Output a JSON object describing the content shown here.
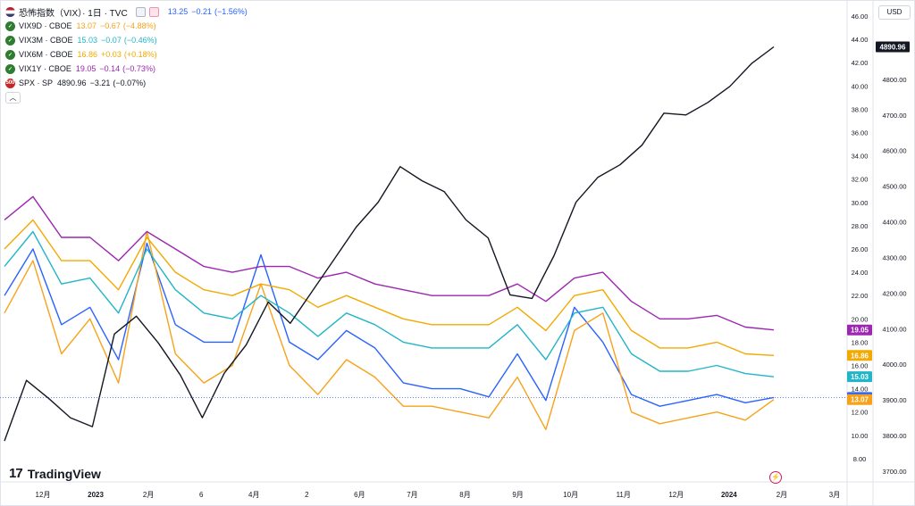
{
  "header": {
    "symbol_name": "恐怖指数（VIX）· 1日 · TVC",
    "last": "13.25",
    "change": "−0.21",
    "change_pct": "(−1.56%)",
    "flag_icon": "us-flag-icon"
  },
  "legend": [
    {
      "icon": "vix9d-logo-icon",
      "name": "VIX9D · CBOE",
      "value": "13.07",
      "change": "−0.67",
      "change_pct": "(−4.88%)",
      "color": "#f7a21b"
    },
    {
      "icon": "vix3m-logo-icon",
      "name": "VIX3M · CBOE",
      "value": "15.03",
      "change": "−0.07",
      "change_pct": "(−0.46%)",
      "color": "#22b5c8"
    },
    {
      "icon": "vix6m-logo-icon",
      "name": "VIX6M · CBOE",
      "value": "16.86",
      "change": "+0.03",
      "change_pct": "(+0.18%)",
      "color": "#f2a900"
    },
    {
      "icon": "vix1y-logo-icon",
      "name": "VIX1Y · CBOE",
      "value": "19.05",
      "change": "−0.14",
      "change_pct": "(−0.73%)",
      "color": "#9c27b0"
    },
    {
      "icon": "spx-logo-icon",
      "logo_text": "500",
      "name": "SPX · SP",
      "value": "4890.96",
      "change": "−3.21",
      "change_pct": "(−0.07%)",
      "color": "#131722"
    }
  ],
  "currency": "USD",
  "brand": "TradingView",
  "chart_data": {
    "type": "line",
    "x_tick_labels": [
      "12月",
      "2023",
      "2月",
      "6",
      "4月",
      "2",
      "6月",
      "7月",
      "8月",
      "9月",
      "10月",
      "11月",
      "12月",
      "2024",
      "2月",
      "3月"
    ],
    "y_axis_vix": {
      "range": [
        6,
        47
      ],
      "ticks": [
        "46.00",
        "44.00",
        "42.00",
        "40.00",
        "38.00",
        "36.00",
        "34.00",
        "32.00",
        "30.00",
        "28.00",
        "26.00",
        "24.00",
        "22.00",
        "20.00",
        "18.00",
        "16.00",
        "14.00",
        "12.00",
        "10.00",
        "8.00"
      ]
    },
    "y_axis_spx": {
      "range": [
        3670,
        5010
      ],
      "ticks": [
        "4800.00",
        "4700.00",
        "4600.00",
        "4500.00",
        "4400.00",
        "4300.00",
        "4200.00",
        "4100.00",
        "4000.00",
        "3900.00",
        "3800.00",
        "3700.00"
      ]
    },
    "last_value_labels": [
      {
        "text": "4890.96",
        "color": "#131722"
      },
      {
        "text": "19.05",
        "color": "#9c27b0"
      },
      {
        "text": "16.86",
        "color": "#f2a900"
      },
      {
        "text": "15.03",
        "color": "#22b5c8"
      },
      {
        "text": "13.25",
        "color": "#2962ff"
      },
      {
        "text": "13.07",
        "color": "#f7a21b"
      }
    ],
    "series": [
      {
        "name": "恐怖指数（VIX）",
        "color": "#2962ff",
        "axis": "left",
        "values": [
          22.0,
          26.0,
          19.5,
          21.0,
          16.5,
          26.5,
          19.5,
          18.0,
          18.0,
          25.5,
          18.0,
          16.5,
          19.0,
          17.5,
          14.5,
          14.0,
          14.0,
          13.3,
          17.0,
          13.0,
          21.0,
          18.0,
          13.5,
          12.5,
          13.0,
          13.5,
          12.8,
          13.25
        ]
      },
      {
        "name": "VIX9D · CBOE",
        "color": "#f7a21b",
        "axis": "left",
        "values": [
          20.5,
          25.0,
          17.0,
          20.0,
          14.5,
          27.5,
          17.0,
          14.5,
          16.0,
          23.0,
          16.0,
          13.5,
          16.5,
          15.0,
          12.5,
          12.5,
          12.0,
          11.5,
          15.0,
          10.5,
          19.0,
          20.5,
          12.0,
          11.0,
          11.5,
          12.0,
          11.3,
          13.07
        ]
      },
      {
        "name": "VIX3M · CBOE",
        "color": "#22b5c8",
        "axis": "left",
        "values": [
          24.5,
          27.5,
          23.0,
          23.5,
          20.5,
          26.0,
          22.5,
          20.5,
          20.0,
          22.0,
          20.5,
          18.5,
          20.5,
          19.5,
          18.0,
          17.5,
          17.5,
          17.5,
          19.5,
          16.5,
          20.5,
          21.0,
          17.0,
          15.5,
          15.5,
          16.0,
          15.3,
          15.03
        ]
      },
      {
        "name": "VIX6M · CBOE",
        "color": "#f2a900",
        "axis": "left",
        "values": [
          26.0,
          28.5,
          25.0,
          25.0,
          22.5,
          27.0,
          24.0,
          22.5,
          22.0,
          23.0,
          22.5,
          21.0,
          22.0,
          21.0,
          20.0,
          19.5,
          19.5,
          19.5,
          21.0,
          19.0,
          22.0,
          22.5,
          19.0,
          17.5,
          17.5,
          18.0,
          17.0,
          16.86
        ]
      },
      {
        "name": "VIX1Y · CBOE",
        "color": "#9c27b0",
        "axis": "left",
        "values": [
          28.5,
          30.5,
          27.0,
          27.0,
          25.0,
          27.5,
          26.0,
          24.5,
          24.0,
          24.5,
          24.5,
          23.5,
          24.0,
          23.0,
          22.5,
          22.0,
          22.0,
          22.0,
          23.0,
          21.5,
          23.5,
          24.0,
          21.5,
          20.0,
          20.0,
          20.3,
          19.3,
          19.05
        ]
      },
      {
        "name": "SPX · SP",
        "color": "#131722",
        "axis": "right",
        "values": [
          3785,
          3955,
          3905,
          3850,
          3825,
          4085,
          4135,
          4060,
          3970,
          3850,
          3975,
          4055,
          4175,
          4115,
          4205,
          4295,
          4385,
          4455,
          4555,
          4515,
          4485,
          4405,
          4355,
          4195,
          4185,
          4305,
          4455,
          4525,
          4560,
          4615,
          4705,
          4700,
          4735,
          4780,
          4845,
          4890.96
        ]
      }
    ]
  }
}
